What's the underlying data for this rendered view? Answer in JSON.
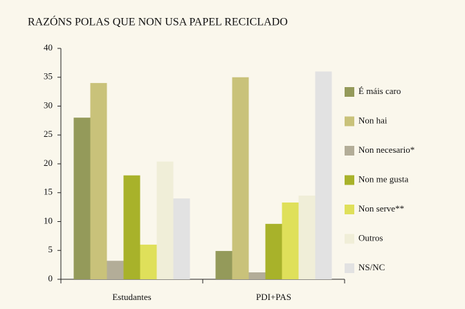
{
  "chart_data": {
    "type": "bar",
    "title": "RAZÓNS POLAS QUE NON USA PAPEL RECICLADO",
    "categories": [
      "Estudantes",
      "PDI+PAS"
    ],
    "series": [
      {
        "name": "É máis caro",
        "color": "#949a5a",
        "values": [
          28,
          4.9
        ]
      },
      {
        "name": "Non hai",
        "color": "#c9c27a",
        "values": [
          34,
          35
        ]
      },
      {
        "name": "Non necesario*",
        "color": "#b3ad98",
        "values": [
          3.2,
          1.2
        ]
      },
      {
        "name": "Non me gusta",
        "color": "#a8b22a",
        "values": [
          18,
          9.6
        ]
      },
      {
        "name": "Non serve**",
        "color": "#dfe05a",
        "values": [
          6,
          13.3
        ]
      },
      {
        "name": "Outros",
        "color": "#f0eed8",
        "values": [
          20.4,
          14.5
        ]
      },
      {
        "name": "NS/NC",
        "color": "#e2e2e2",
        "values": [
          14,
          36
        ]
      }
    ],
    "ylim": [
      0,
      40
    ],
    "yticks": [
      0,
      5,
      10,
      15,
      20,
      25,
      30,
      35,
      40
    ],
    "legend": "right"
  }
}
